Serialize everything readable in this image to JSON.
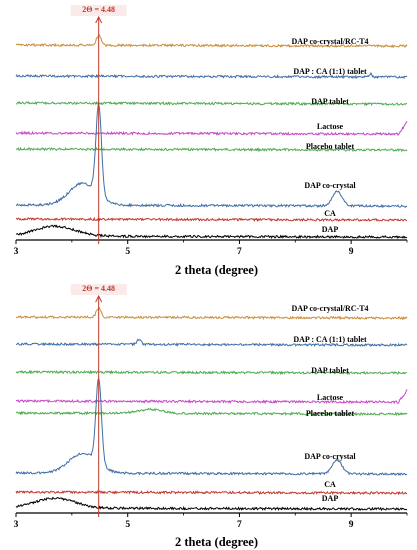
{
  "chart_data": [
    {
      "type": "line",
      "xlabel": "2 theta (degree)",
      "xlim": [
        3,
        10
      ],
      "xticks": [
        3,
        5,
        7,
        9
      ],
      "marker": {
        "x": 4.48,
        "label": "2Θ = 4.48",
        "color": "#c0392b"
      },
      "grid": false,
      "series": [
        {
          "name": "DAP co-crystal/RC-T4",
          "color": "#c98d3c",
          "peaks": [
            {
              "x": 4.48,
              "h": 10,
              "w": 0.06
            }
          ],
          "bumps": []
        },
        {
          "name": "DAP : CA (1:1) tablet",
          "color": "#3f6ea5",
          "peaks": [
            {
              "x": 9.35,
              "h": 3,
              "w": 0.03
            }
          ],
          "bumps": []
        },
        {
          "name": "DAP tablet",
          "color": "#4faa4f",
          "peaks": [],
          "bumps": []
        },
        {
          "name": "Lactose",
          "color": "#c548c5",
          "peaks": [],
          "bumps": []
        },
        {
          "name": "Placebo tablet",
          "color": "#4faa4f",
          "peaks": [],
          "bumps": []
        },
        {
          "name": "DAP co-crystal",
          "color": "#3f6ea5",
          "peaks": [
            {
              "x": 4.48,
              "h": 90,
              "w": 0.07
            },
            {
              "x": 8.75,
              "h": 15,
              "w": 0.12
            }
          ],
          "bumps": [
            {
              "x": 4.2,
              "h": 22,
              "w": 0.35
            }
          ]
        },
        {
          "name": "CA",
          "color": "#c0392b",
          "peaks": [],
          "bumps": []
        },
        {
          "name": "DAP",
          "color": "#000000",
          "peaks": [],
          "bumps": [
            {
              "x": 3.7,
              "h": 10,
              "w": 0.5
            }
          ]
        }
      ]
    },
    {
      "type": "line",
      "xlabel": "2 theta (degree)",
      "xlim": [
        3,
        10
      ],
      "xticks": [
        3,
        5,
        7,
        9
      ],
      "marker": {
        "x": 4.48,
        "label": "2Θ = 4.48",
        "color": "#c0392b"
      },
      "grid": false,
      "series": [
        {
          "name": "DAP co-crystal/RC-T4",
          "color": "#c98d3c",
          "peaks": [
            {
              "x": 4.48,
              "h": 9,
              "w": 0.06
            }
          ],
          "bumps": []
        },
        {
          "name": "DAP : CA (1:1) tablet",
          "color": "#3f6ea5",
          "peaks": [
            {
              "x": 5.2,
              "h": 5,
              "w": 0.05
            }
          ],
          "bumps": []
        },
        {
          "name": "DAP tablet",
          "color": "#4faa4f",
          "peaks": [],
          "bumps": []
        },
        {
          "name": "Lactose",
          "color": "#c548c5",
          "peaks": [],
          "bumps": []
        },
        {
          "name": "Placebo tablet",
          "color": "#4faa4f",
          "peaks": [],
          "bumps": [
            {
              "x": 5.4,
              "h": 4,
              "w": 0.3
            }
          ]
        },
        {
          "name": "DAP co-crystal",
          "color": "#3f6ea5",
          "peaks": [
            {
              "x": 4.48,
              "h": 85,
              "w": 0.07
            },
            {
              "x": 8.75,
              "h": 14,
              "w": 0.12
            }
          ],
          "bumps": [
            {
              "x": 4.2,
              "h": 20,
              "w": 0.35
            }
          ]
        },
        {
          "name": "CA",
          "color": "#c0392b",
          "peaks": [],
          "bumps": []
        },
        {
          "name": "DAP",
          "color": "#000000",
          "peaks": [],
          "bumps": [
            {
              "x": 3.7,
              "h": 10,
              "w": 0.5
            }
          ]
        }
      ]
    }
  ]
}
